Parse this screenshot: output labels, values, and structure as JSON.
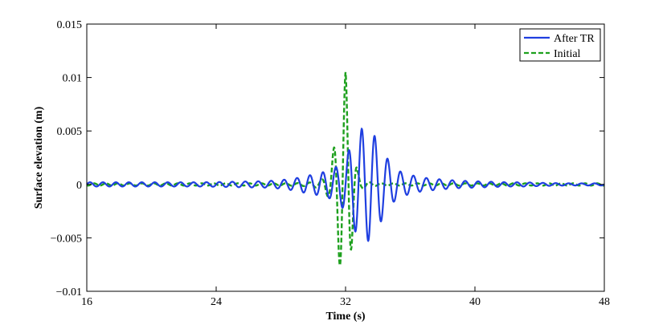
{
  "chart_data": {
    "type": "line",
    "title": "",
    "xlabel": "Time (s)",
    "ylabel": "Surface elevation (m)",
    "xlim": [
      16,
      48
    ],
    "ylim": [
      -0.01,
      0.015
    ],
    "xticks": [
      16,
      24,
      32,
      40,
      48
    ],
    "xtick_labels": [
      "16",
      "24",
      "32",
      "40",
      "48"
    ],
    "yticks": [
      -0.01,
      -0.005,
      0,
      0.005,
      0.01,
      0.015
    ],
    "ytick_labels": [
      "−0.01",
      "−0.005",
      "0",
      "0.005",
      "0.01",
      "0.015"
    ],
    "grid": false,
    "legend_position": "top-right",
    "series": [
      {
        "name": "After TR",
        "color": "#1f3fe0",
        "style": "solid",
        "x": [
          16,
          17,
          18,
          19,
          20,
          21,
          22,
          23,
          24,
          25,
          26,
          27,
          28,
          28.5,
          29,
          29.5,
          30,
          30.5,
          31,
          31.5,
          32,
          32.5,
          33,
          33.5,
          34,
          34.5,
          35,
          35.5,
          36,
          36.5,
          37,
          38,
          39,
          40,
          41,
          42,
          43,
          44,
          45,
          46,
          47,
          48
        ],
        "envelope": [
          0.0002,
          0.0002,
          0.0002,
          0.0002,
          0.0002,
          0.0002,
          0.0002,
          0.0002,
          0.00022,
          0.00025,
          0.00028,
          0.0003,
          0.0004,
          0.0005,
          0.0006,
          0.0008,
          0.0009,
          0.0011,
          0.0013,
          0.0017,
          0.0025,
          0.0042,
          0.0052,
          0.0053,
          0.004,
          0.0026,
          0.0016,
          0.0011,
          0.0009,
          0.0007,
          0.0006,
          0.00045,
          0.00035,
          0.0003,
          0.00025,
          0.0002,
          0.0002,
          0.00015,
          0.00012,
          0.0001,
          0.0001,
          0.0001
        ]
      },
      {
        "name": "Initial",
        "color": "#1ea01e",
        "style": "dashed",
        "x": [
          16,
          18,
          20,
          22,
          24,
          26,
          28,
          29,
          29.5,
          30,
          30.5,
          31,
          31.25,
          31.5,
          31.75,
          32,
          32.25,
          32.5,
          32.75,
          33,
          33.5,
          34,
          36,
          40,
          44,
          48
        ],
        "envelope": [
          0.0001,
          0.0001,
          0.0001,
          0.0001,
          0.0001,
          0.0001,
          0.0001,
          0.00012,
          0.00015,
          0.0002,
          0.0004,
          0.0012,
          0.0032,
          0.0055,
          0.0082,
          0.0105,
          0.0072,
          0.0034,
          0.0012,
          0.0004,
          0.0002,
          0.0001,
          0.0001,
          0.0001,
          0.0001,
          0.0001
        ]
      }
    ]
  }
}
